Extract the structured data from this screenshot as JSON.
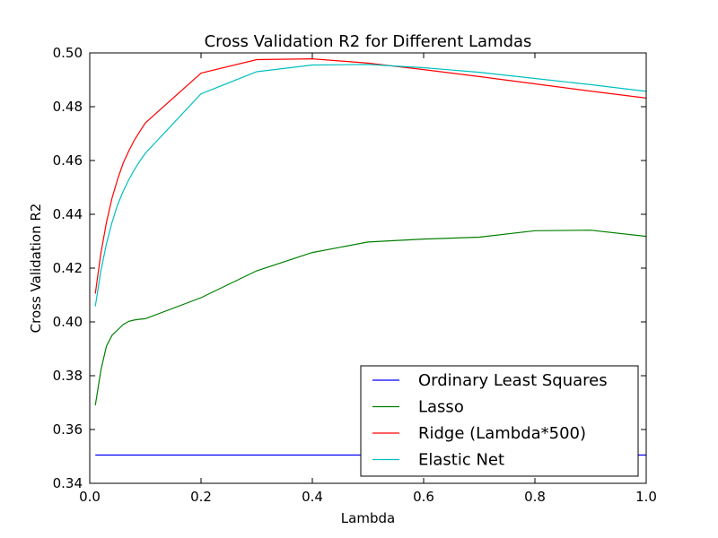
{
  "chart_data": {
    "type": "line",
    "title": "Cross Validation R2 for Different Lamdas",
    "xlabel": "Lambda",
    "ylabel": "Cross Validation R2",
    "xlim": [
      0.0,
      1.0
    ],
    "ylim": [
      0.34,
      0.5
    ],
    "xticks": [
      "0.0",
      "0.2",
      "0.4",
      "0.6",
      "0.8",
      "1.0"
    ],
    "yticks": [
      "0.34",
      "0.36",
      "0.38",
      "0.40",
      "0.42",
      "0.44",
      "0.46",
      "0.48",
      "0.50"
    ],
    "grid": false,
    "legend_position": "lower-right",
    "series": [
      {
        "name": "Ordinary Least Squares",
        "color": "#0000ff",
        "x": [
          0.01,
          1.0
        ],
        "y": [
          0.3505,
          0.3505
        ]
      },
      {
        "name": "Lasso",
        "color": "#008000",
        "x": [
          0.01,
          0.02,
          0.03,
          0.04,
          0.05,
          0.06,
          0.07,
          0.08,
          0.09,
          0.1,
          0.2,
          0.3,
          0.4,
          0.5,
          0.6,
          0.7,
          0.8,
          0.9,
          1.0
        ],
        "y": [
          0.369,
          0.382,
          0.391,
          0.395,
          0.397,
          0.399,
          0.4002,
          0.4007,
          0.401,
          0.4012,
          0.409,
          0.419,
          0.4258,
          0.4297,
          0.4308,
          0.4315,
          0.4339,
          0.4341,
          0.4318
        ]
      },
      {
        "name": "Ridge (Lambda*500)",
        "color": "#ff0000",
        "x": [
          0.01,
          0.02,
          0.03,
          0.04,
          0.05,
          0.06,
          0.07,
          0.08,
          0.09,
          0.1,
          0.2,
          0.3,
          0.4,
          0.5,
          0.6,
          0.7,
          0.8,
          0.9,
          1.0
        ],
        "y": [
          0.4105,
          0.4255,
          0.437,
          0.446,
          0.453,
          0.459,
          0.4635,
          0.4675,
          0.4708,
          0.474,
          0.4925,
          0.4975,
          0.4978,
          0.4962,
          0.4938,
          0.4912,
          0.4885,
          0.4858,
          0.4832
        ]
      },
      {
        "name": "Elastic Net",
        "color": "#00bfbf",
        "x": [
          0.01,
          0.02,
          0.03,
          0.04,
          0.05,
          0.06,
          0.07,
          0.08,
          0.09,
          0.1,
          0.2,
          0.3,
          0.4,
          0.5,
          0.6,
          0.7,
          0.8,
          0.9,
          1.0
        ],
        "y": [
          0.4058,
          0.419,
          0.429,
          0.437,
          0.4435,
          0.4485,
          0.4528,
          0.4565,
          0.4598,
          0.4627,
          0.4848,
          0.493,
          0.4955,
          0.4957,
          0.4945,
          0.4928,
          0.4905,
          0.4882,
          0.4857
        ]
      }
    ]
  }
}
